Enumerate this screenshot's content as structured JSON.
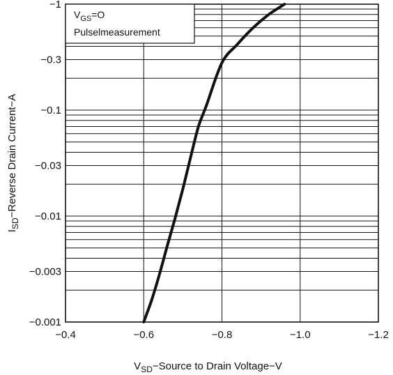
{
  "chart_data": {
    "type": "line",
    "title": "",
    "xlabel": {
      "symbol": "V",
      "subscript": "SD",
      "text": "−Source to Drain Voltage−V"
    },
    "ylabel": {
      "symbol": "I",
      "subscript": "SD",
      "text": "−Reverse Drain Current−A"
    },
    "xlim": [
      -0.4,
      -1.2
    ],
    "ylim": [
      -0.001,
      -1
    ],
    "yscale": "log",
    "grid": true,
    "x_ticks": [
      -0.4,
      -0.6,
      -0.8,
      -1.0,
      -1.2
    ],
    "x_tick_labels": [
      "−0.4",
      "−0.6",
      "−0.8",
      "−1.0",
      "−1.2"
    ],
    "y_ticks": [
      -0.001,
      -0.003,
      -0.01,
      -0.03,
      -0.1,
      -0.3,
      -1
    ],
    "y_tick_labels": [
      "−0.001",
      "−0.003",
      "−0.01",
      "−0.03",
      "−0.1",
      "−0.3",
      "−1"
    ],
    "annotation": {
      "line1_symbol": "V",
      "line1_subscript": "GS",
      "line1_text": "=O",
      "line2": "Pulselmeasurement"
    },
    "series": [
      {
        "x": [
          -0.6,
          -0.62,
          -0.64,
          -0.66,
          -0.68,
          -0.7,
          -0.72,
          -0.74,
          -0.76,
          -0.8,
          -0.84,
          -0.88,
          -0.92,
          -0.96
        ],
        "y": [
          -0.001,
          -0.0016,
          -0.0028,
          -0.0052,
          -0.0095,
          -0.018,
          -0.036,
          -0.07,
          -0.11,
          -0.28,
          -0.42,
          -0.6,
          -0.8,
          -1.0
        ]
      }
    ]
  }
}
